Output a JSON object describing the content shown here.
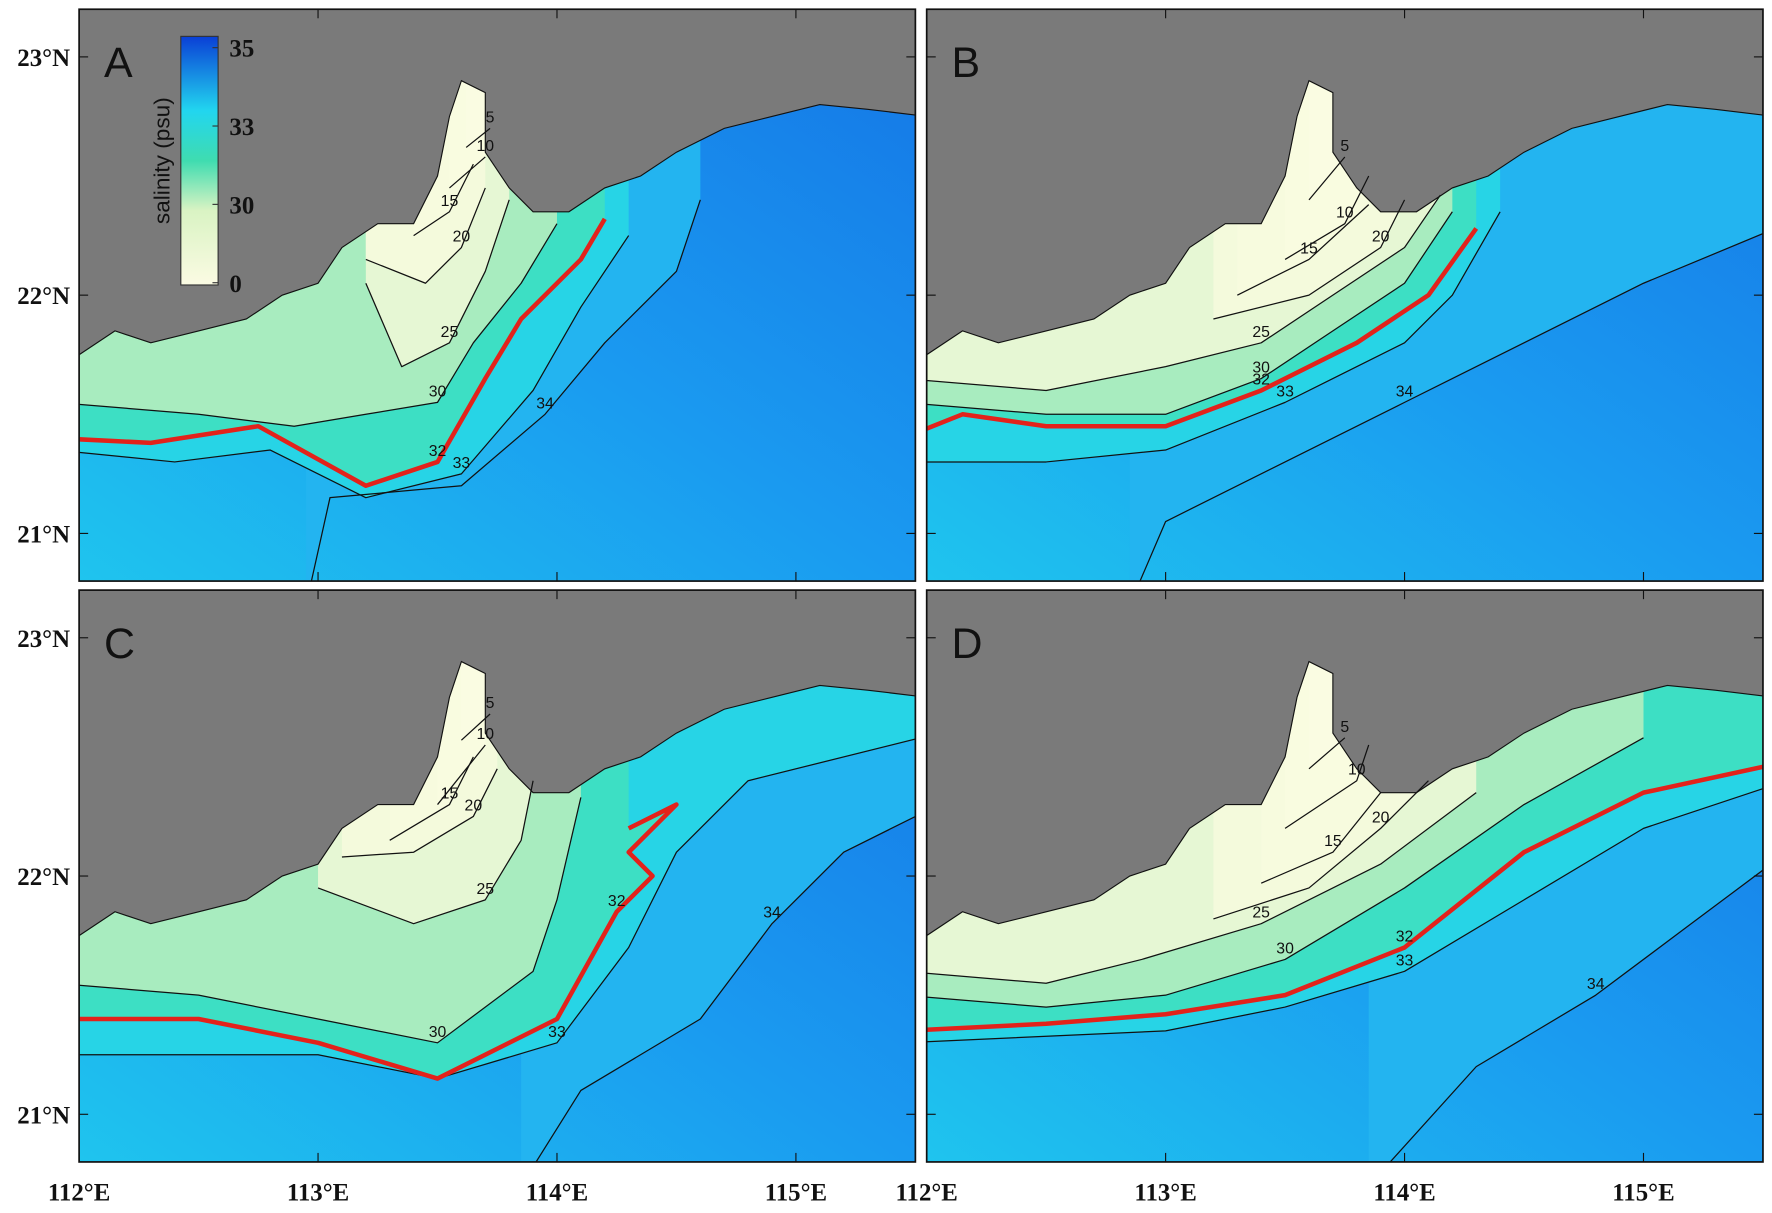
{
  "xticks": [
    {
      "value": 112,
      "label": "112°E"
    },
    {
      "value": 113,
      "label": "113°E"
    },
    {
      "value": 114,
      "label": "114°E"
    },
    {
      "value": 115,
      "label": "115°E"
    }
  ],
  "yticks": [
    {
      "value": 21,
      "label": "21°N"
    },
    {
      "value": 22,
      "label": "22°N"
    },
    {
      "value": 23,
      "label": "23°N"
    }
  ],
  "xlim": [
    112,
    115.5
  ],
  "ylim": [
    20.8,
    23.2
  ],
  "colorbar": {
    "title": "salinity (psu)",
    "ticks": [
      0,
      30,
      33,
      35
    ]
  },
  "panels": [
    {
      "label": "A",
      "contour_levels": [
        34,
        33,
        32,
        30,
        25,
        20,
        15,
        10,
        5
      ]
    },
    {
      "label": "B",
      "contour_levels": [
        34,
        33,
        32,
        30,
        25,
        20,
        15,
        10,
        5
      ]
    },
    {
      "label": "C",
      "contour_levels": [
        34,
        33,
        32,
        30,
        25,
        20,
        15,
        10,
        5
      ]
    },
    {
      "label": "D",
      "contour_levels": [
        34,
        33,
        32,
        30,
        25,
        20,
        15,
        10,
        5
      ]
    }
  ]
}
